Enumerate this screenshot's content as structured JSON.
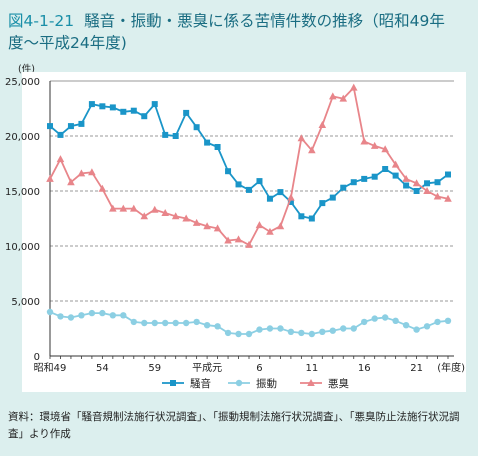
{
  "header": {
    "fig_label": "図4-1-21",
    "title": "騒音・振動・悪臭に係る苦情件数の推移（昭和49年度〜平成24年度)"
  },
  "chart_data": {
    "type": "line",
    "title": "騒音・振動・悪臭に係る苦情件数の推移（昭和49年度〜平成24年度)",
    "ylabel": "(件)",
    "xlabel": "(年度)",
    "ylim": [
      0,
      25000
    ],
    "yticks": [
      "0",
      "5,000",
      "10,000",
      "15,000",
      "20,000",
      "25,000"
    ],
    "xtick_labels": [
      {
        "index": 0,
        "label": "昭和49"
      },
      {
        "index": 5,
        "label": "54"
      },
      {
        "index": 10,
        "label": "59"
      },
      {
        "index": 15,
        "label": "平成元"
      },
      {
        "index": 20,
        "label": "6"
      },
      {
        "index": 25,
        "label": "11"
      },
      {
        "index": 30,
        "label": "16"
      },
      {
        "index": 35,
        "label": "21"
      }
    ],
    "x": [
      "S49",
      "S50",
      "S51",
      "S52",
      "S53",
      "S54",
      "S55",
      "S56",
      "S57",
      "S58",
      "S59",
      "S60",
      "S61",
      "S62",
      "S63",
      "H1",
      "H2",
      "H3",
      "H4",
      "H5",
      "H6",
      "H7",
      "H8",
      "H9",
      "H10",
      "H11",
      "H12",
      "H13",
      "H14",
      "H15",
      "H16",
      "H17",
      "H18",
      "H19",
      "H20",
      "H21",
      "H22",
      "H23",
      "H24"
    ],
    "series": [
      {
        "name": "騒音",
        "color": "#1a95c8",
        "marker": "square",
        "values": [
          20900,
          20100,
          20900,
          21100,
          22900,
          22700,
          22600,
          22200,
          22300,
          21800,
          22900,
          20100,
          20000,
          22100,
          20800,
          19400,
          19000,
          16800,
          15600,
          15100,
          15900,
          14300,
          14900,
          14000,
          12700,
          12500,
          13900,
          14400,
          15300,
          15800,
          16100,
          16300,
          17000,
          16400,
          15500,
          15000,
          15700,
          15800,
          16500
        ]
      },
      {
        "name": "振動",
        "color": "#8ccfe3",
        "marker": "circle",
        "values": [
          4000,
          3600,
          3500,
          3700,
          3900,
          3900,
          3700,
          3700,
          3100,
          3000,
          3000,
          3000,
          3000,
          3000,
          3100,
          2800,
          2700,
          2100,
          2000,
          2000,
          2400,
          2500,
          2500,
          2200,
          2100,
          2000,
          2200,
          2300,
          2500,
          2500,
          3100,
          3400,
          3500,
          3200,
          2800,
          2400,
          2700,
          3100,
          3200
        ]
      },
      {
        "name": "悪臭",
        "color": "#e8858a",
        "marker": "triangle",
        "values": [
          16100,
          17900,
          15800,
          16600,
          16700,
          15200,
          13400,
          13400,
          13400,
          12700,
          13300,
          13000,
          12700,
          12500,
          12100,
          11800,
          11600,
          10500,
          10600,
          10100,
          11900,
          11300,
          11800,
          14400,
          19800,
          18700,
          21000,
          23600,
          23400,
          24400,
          19500,
          19100,
          18800,
          17400,
          16100,
          15700,
          15000,
          14500,
          14300
        ]
      }
    ]
  },
  "legend": [
    {
      "label": "騒音"
    },
    {
      "label": "振動"
    },
    {
      "label": "悪臭"
    }
  ],
  "note": {
    "text": "資料：環境省「騒音規制法施行状況調査」、「振動規制法施行状況調査」、「悪臭防止法施行状況調査」より作成"
  }
}
